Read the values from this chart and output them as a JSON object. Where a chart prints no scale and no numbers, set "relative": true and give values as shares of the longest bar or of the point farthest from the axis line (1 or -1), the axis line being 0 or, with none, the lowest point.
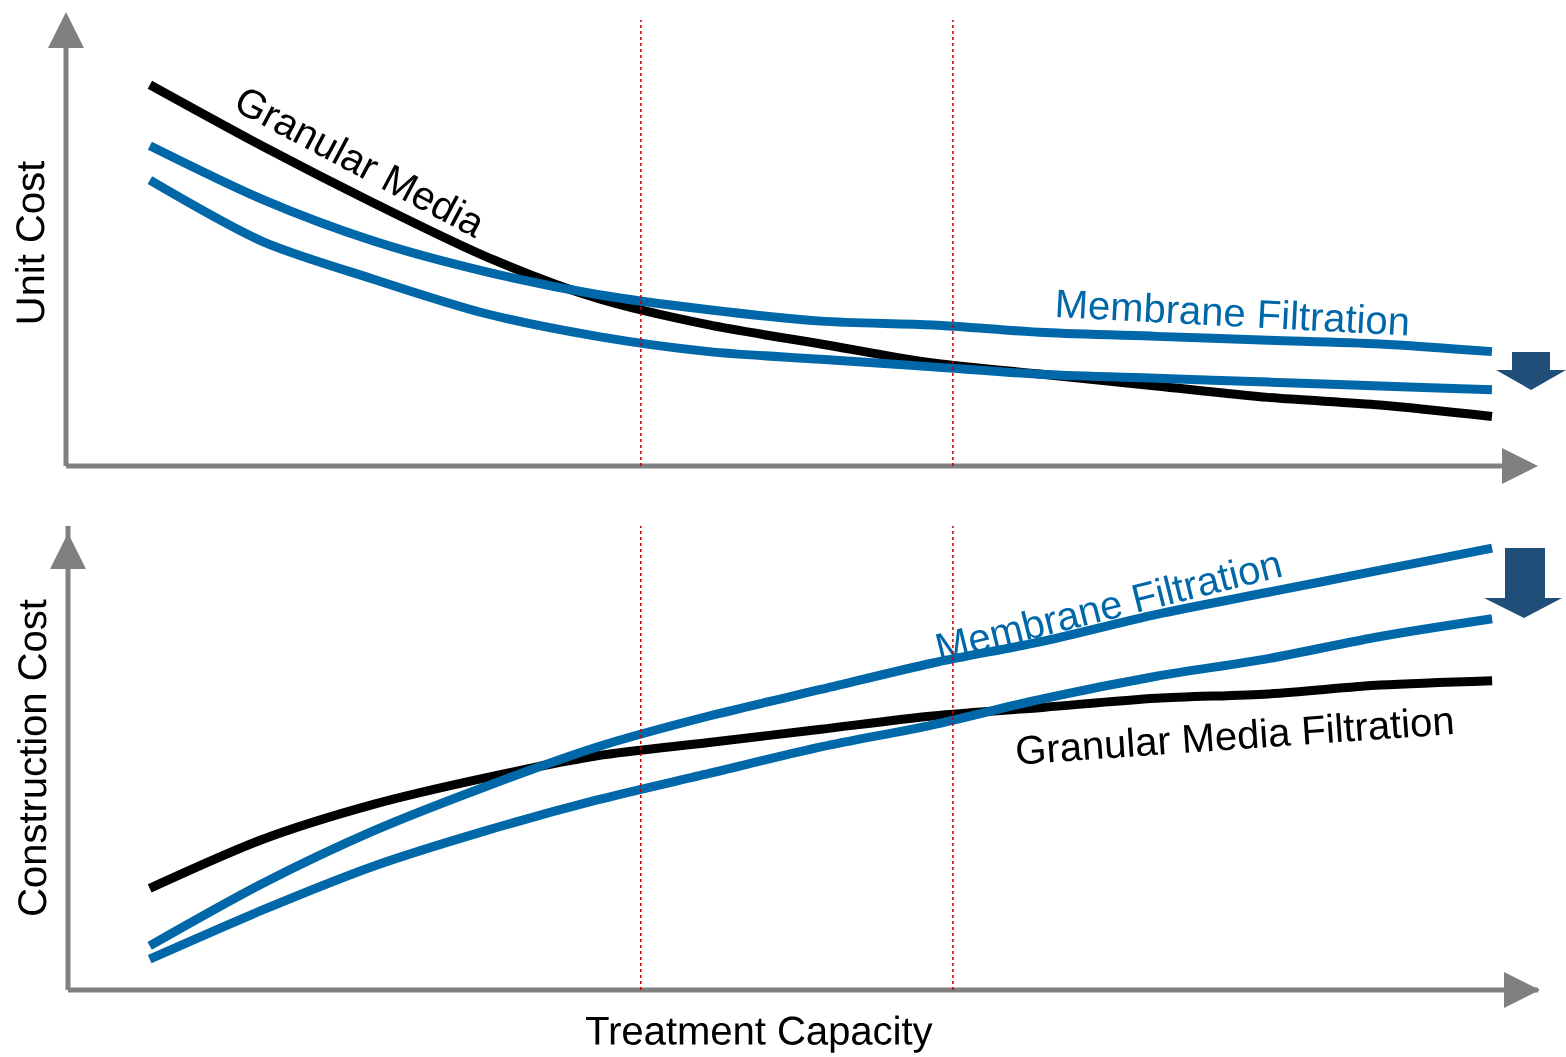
{
  "chart_data": [
    {
      "type": "line",
      "relative": true,
      "ylabel": "Unit Cost",
      "tick_labels": false,
      "categories": [
        null,
        null,
        null,
        null,
        null,
        null,
        null,
        null,
        null,
        null,
        null,
        null,
        null
      ],
      "series": [
        {
          "name": "Granular Media",
          "color": "#000000",
          "values": [
            1.0,
            0.84,
            0.69,
            0.55,
            0.44,
            0.37,
            0.32,
            0.27,
            0.24,
            0.21,
            0.18,
            0.16,
            0.13
          ]
        },
        {
          "name": "Membrane Filtration",
          "color": "#0068a8",
          "values": [
            0.84,
            0.7,
            0.59,
            0.51,
            0.45,
            0.41,
            0.38,
            0.37,
            0.35,
            0.34,
            0.33,
            0.32,
            0.3
          ]
        },
        {
          "color": "#0068a8",
          "values": [
            0.75,
            0.59,
            0.49,
            0.4,
            0.34,
            0.3,
            0.28,
            0.26,
            0.24,
            0.23,
            0.22,
            0.21,
            0.2
          ]
        }
      ]
    },
    {
      "type": "line",
      "relative": true,
      "ylabel": "Construction Cost",
      "xlabel": "Treatment Capacity",
      "tick_labels": false,
      "categories": [
        null,
        null,
        null,
        null,
        null,
        null,
        null,
        null,
        null,
        null,
        null,
        null,
        null
      ],
      "series": [
        {
          "name": "Granular Media Filtration",
          "color": "#000000",
          "values": [
            0.23,
            0.34,
            0.42,
            0.48,
            0.53,
            0.56,
            0.59,
            0.62,
            0.64,
            0.66,
            0.67,
            0.69,
            0.7
          ]
        },
        {
          "name": "Membrane Filtration",
          "color": "#0068a8",
          "values": [
            0.1,
            0.24,
            0.36,
            0.46,
            0.55,
            0.62,
            0.68,
            0.74,
            0.79,
            0.85,
            0.9,
            0.95,
            1.0
          ]
        },
        {
          "color": "#0068a8",
          "values": [
            0.07,
            0.18,
            0.28,
            0.36,
            0.43,
            0.49,
            0.55,
            0.6,
            0.66,
            0.71,
            0.75,
            0.8,
            0.84
          ]
        }
      ]
    }
  ]
}
